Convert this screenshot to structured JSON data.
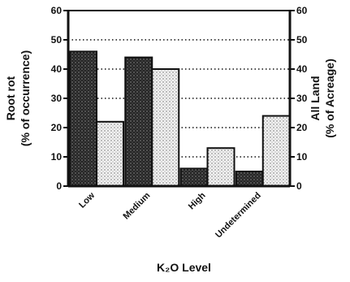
{
  "chart_data": {
    "type": "bar",
    "categories": [
      "Low",
      "Medium",
      "High",
      "Undetermined"
    ],
    "series": [
      {
        "name": "Root rot",
        "values": [
          46,
          44,
          6,
          5
        ],
        "axis": "left",
        "pattern": "dark-stipple"
      },
      {
        "name": "All Land",
        "values": [
          22,
          40,
          13,
          24
        ],
        "axis": "right",
        "pattern": "light-stipple"
      }
    ],
    "xlabel": "K₂O Level",
    "ylabel_left": [
      "Root rot",
      "(% of occurrence)"
    ],
    "ylabel_right": [
      "All Land",
      "(% of Acreage)"
    ],
    "ylim": [
      0,
      60
    ],
    "yticks": [
      0,
      10,
      20,
      30,
      40,
      50,
      60
    ],
    "grid": "dotted-horizontal",
    "colors": {
      "ink": "#111111",
      "dark_bar": "#2a2a2a",
      "light_bar": "#e8e8e8"
    }
  }
}
